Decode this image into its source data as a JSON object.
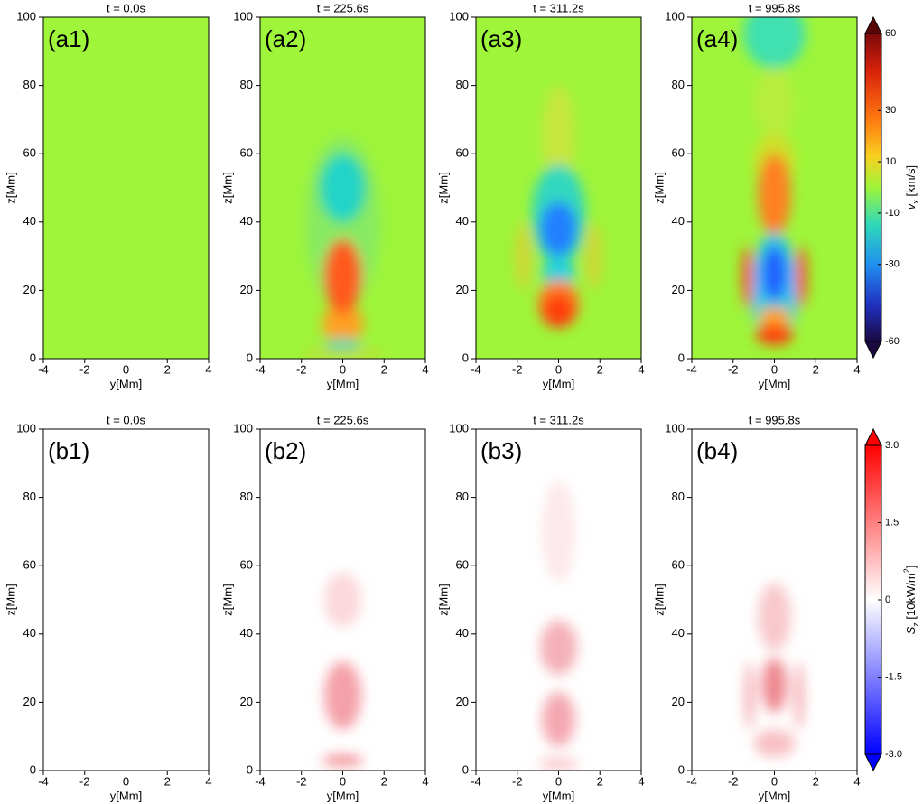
{
  "chart_data": [
    {
      "type": "heatmap",
      "title": "t = 0.0s",
      "panel_label": "(a1)",
      "xlabel": "y[Mm]",
      "ylabel": "z[Mm]",
      "xlim": [
        -4,
        4
      ],
      "ylim": [
        0,
        100
      ],
      "xticks": [
        -4,
        -2,
        0,
        2,
        4
      ],
      "yticks": [
        0,
        20,
        40,
        60,
        80,
        100
      ]
    },
    {
      "type": "heatmap",
      "title": "t = 225.6s",
      "panel_label": "(a2)",
      "xlabel": "y[Mm]",
      "ylabel": "z[Mm]",
      "xlim": [
        -4,
        4
      ],
      "ylim": [
        0,
        100
      ],
      "xticks": [
        -4,
        -2,
        0,
        2,
        4
      ],
      "yticks": [
        0,
        20,
        40,
        60,
        80,
        100
      ]
    },
    {
      "type": "heatmap",
      "title": "t = 311.2s",
      "panel_label": "(a3)",
      "xlabel": "y[Mm]",
      "ylabel": "z[Mm]",
      "xlim": [
        -4,
        4
      ],
      "ylim": [
        0,
        100
      ],
      "xticks": [
        -4,
        -2,
        0,
        2,
        4
      ],
      "yticks": [
        0,
        20,
        40,
        60,
        80,
        100
      ]
    },
    {
      "type": "heatmap",
      "title": "t = 995.8s",
      "panel_label": "(a4)",
      "xlabel": "y[Mm]",
      "ylabel": "z[Mm]",
      "xlim": [
        -4,
        4
      ],
      "ylim": [
        0,
        100
      ],
      "xticks": [
        -4,
        -2,
        0,
        2,
        4
      ],
      "yticks": [
        0,
        20,
        40,
        60,
        80,
        100
      ]
    },
    {
      "type": "heatmap",
      "title": "t = 0.0s",
      "panel_label": "(b1)",
      "xlabel": "y[Mm]",
      "ylabel": "z[Mm]",
      "xlim": [
        -4,
        4
      ],
      "ylim": [
        0,
        100
      ],
      "xticks": [
        -4,
        -2,
        0,
        2,
        4
      ],
      "yticks": [
        0,
        20,
        40,
        60,
        80,
        100
      ]
    },
    {
      "type": "heatmap",
      "title": "t = 225.6s",
      "panel_label": "(b2)",
      "xlabel": "y[Mm]",
      "ylabel": "z[Mm]",
      "xlim": [
        -4,
        4
      ],
      "ylim": [
        0,
        100
      ],
      "xticks": [
        -4,
        -2,
        0,
        2,
        4
      ],
      "yticks": [
        0,
        20,
        40,
        60,
        80,
        100
      ]
    },
    {
      "type": "heatmap",
      "title": "t = 311.2s",
      "panel_label": "(b3)",
      "xlabel": "y[Mm]",
      "ylabel": "z[Mm]",
      "xlim": [
        -4,
        4
      ],
      "ylim": [
        0,
        100
      ],
      "xticks": [
        -4,
        -2,
        0,
        2,
        4
      ],
      "yticks": [
        0,
        20,
        40,
        60,
        80,
        100
      ]
    },
    {
      "type": "heatmap",
      "title": "t = 995.8s",
      "panel_label": "(b4)",
      "xlabel": "y[Mm]",
      "ylabel": "z[Mm]",
      "xlim": [
        -4,
        4
      ],
      "ylim": [
        0,
        100
      ],
      "xticks": [
        -4,
        -2,
        0,
        2,
        4
      ],
      "yticks": [
        0,
        20,
        40,
        60,
        80,
        100
      ]
    }
  ],
  "colorbars": [
    {
      "label": [
        "v",
        "x",
        " [km/s]"
      ],
      "clim": [
        -60,
        60
      ],
      "ticks": [
        60,
        30,
        10,
        -10,
        -30,
        -60
      ],
      "extend": "both"
    },
    {
      "label": [
        "S",
        "z",
        " [10kW/m",
        "2",
        "]"
      ],
      "clim": [
        -3,
        3
      ],
      "ticks": [
        {
          "value": 3,
          "label": "3.0"
        },
        1.5,
        0,
        -1.5,
        {
          "value": -3,
          "label": "-3.0"
        }
      ],
      "extend": "both"
    }
  ]
}
